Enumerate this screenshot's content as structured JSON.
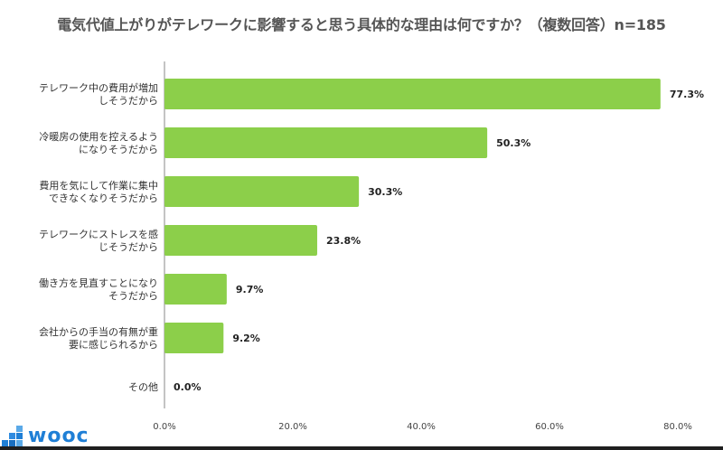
{
  "chart_data": {
    "type": "bar",
    "orientation": "horizontal",
    "title": "電気代値上がりがテレワークに影響すると思う具体的な理由は何ですか？（複数回答）n=185",
    "categories": [
      [
        "テレワーク中の費用が増加",
        "しそうだから"
      ],
      [
        "冷暖房の使用を控えるよう",
        "になりそうだから"
      ],
      [
        "費用を気にして作業に集中",
        "できなくなりそうだから"
      ],
      [
        "テレワークにストレスを感",
        "じそうだから"
      ],
      [
        "働き方を見直すことになり",
        "そうだから"
      ],
      [
        "会社からの手当の有無が重",
        "要に感じられるから"
      ],
      [
        "その他"
      ]
    ],
    "values": [
      77.3,
      50.3,
      30.3,
      23.8,
      9.7,
      9.2,
      0.0
    ],
    "value_labels": [
      "77.3%",
      "50.3%",
      "30.3%",
      "23.8%",
      "9.7%",
      "9.2%",
      "0.0%"
    ],
    "xlim": [
      0,
      80
    ],
    "x_ticks": [
      0,
      20,
      40,
      60,
      80
    ],
    "x_tick_labels": [
      "0.0%",
      "20.0%",
      "40.0%",
      "60.0%",
      "80.0%"
    ],
    "grid": false,
    "bar_color": "#8ccf4a",
    "axis_color": "#888888"
  },
  "logo": {
    "text": "wooc",
    "icon": "blue-squares-icon",
    "color": "#1f7fd6"
  }
}
